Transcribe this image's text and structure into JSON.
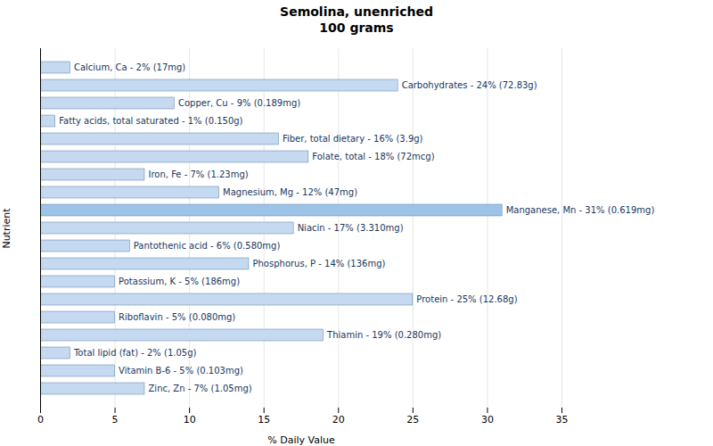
{
  "chart_data": {
    "type": "bar",
    "orientation": "horizontal",
    "title": "Semolina, unenriched\n100 grams",
    "xlabel": "% Daily Value",
    "ylabel": "Nutrient",
    "categories": [
      "Calcium, Ca - 2% (17mg)",
      "Carbohydrates - 24% (72.83g)",
      "Copper, Cu - 9% (0.189mg)",
      "Fatty acids, total saturated - 1% (0.150g)",
      "Fiber, total dietary - 16% (3.9g)",
      "Folate, total - 18% (72mcg)",
      "Iron, Fe - 7% (1.23mg)",
      "Magnesium, Mg - 12% (47mg)",
      "Manganese, Mn - 31% (0.619mg)",
      "Niacin - 17% (3.310mg)",
      "Pantothenic acid - 6% (0.580mg)",
      "Phosphorus, P - 14% (136mg)",
      "Potassium, K - 5% (186mg)",
      "Protein - 25% (12.68g)",
      "Riboflavin - 5% (0.080mg)",
      "Thiamin - 19% (0.280mg)",
      "Total lipid (fat) - 2% (1.05g)",
      "Vitamin B-6 - 5% (0.103mg)",
      "Zinc, Zn - 7% (1.05mg)"
    ],
    "values": [
      2,
      24,
      9,
      1,
      16,
      18,
      7,
      12,
      31,
      17,
      6,
      14,
      5,
      25,
      5,
      19,
      2,
      5,
      7
    ],
    "colors": [
      "#c5d9f1",
      "#c5d9f1",
      "#c5d9f1",
      "#c5d9f1",
      "#c5d9f1",
      "#c5d9f1",
      "#c5d9f1",
      "#c5d9f1",
      "#9dc3e6",
      "#c5d9f1",
      "#c5d9f1",
      "#c5d9f1",
      "#c5d9f1",
      "#c5d9f1",
      "#c5d9f1",
      "#c5d9f1",
      "#c5d9f1",
      "#c5d9f1",
      "#c5d9f1"
    ],
    "xlim": [
      0,
      35
    ],
    "xticks": [
      0,
      5,
      10,
      15,
      20,
      25,
      30,
      35
    ],
    "grid": true,
    "tick_labels": "x"
  }
}
